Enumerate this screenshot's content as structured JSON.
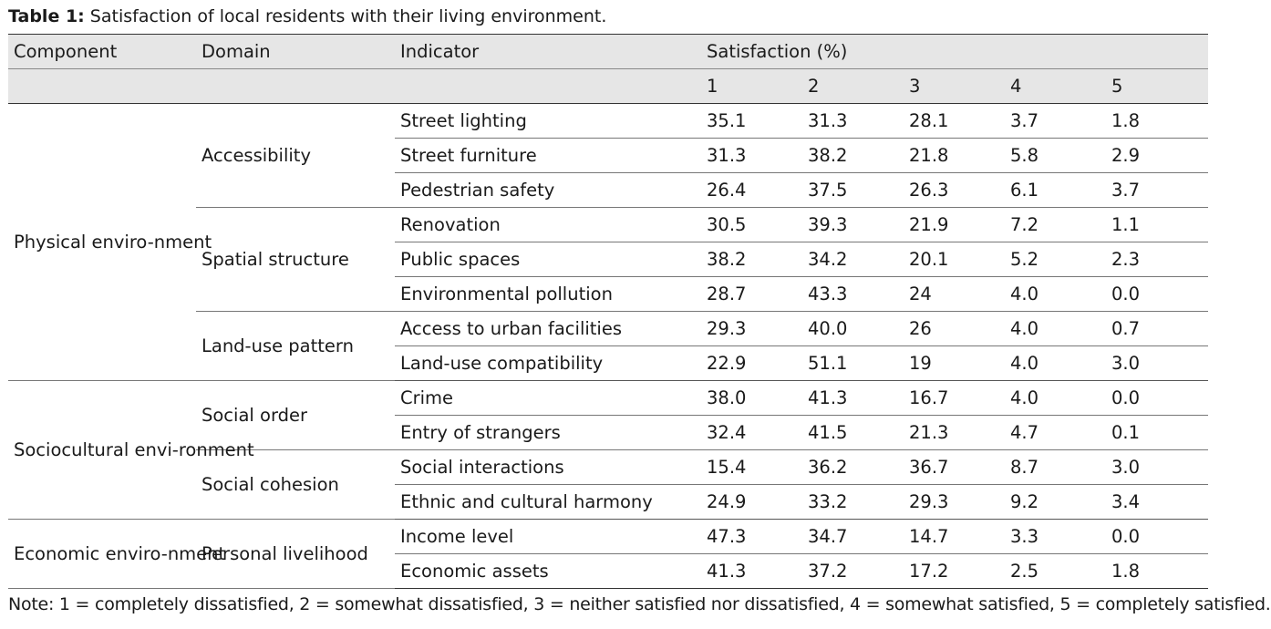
{
  "caption": {
    "label": "Table 1:",
    "text": " Satisfaction of local residents with their living environment."
  },
  "headers": {
    "component": "Component",
    "domain": "Domain",
    "indicator": "Indicator",
    "satisfaction": "Satisfaction (%)",
    "levels": [
      "1",
      "2",
      "3",
      "4",
      "5"
    ]
  },
  "rows": [
    {
      "component": "Physical enviro-nment",
      "domain": "Accessibility",
      "indicator": "Street lighting",
      "values": [
        "35.1",
        "31.3",
        "28.1",
        "3.7",
        "1.8"
      ]
    },
    {
      "component": "Physical enviro-nment",
      "domain": "Accessibility",
      "indicator": "Street furniture",
      "values": [
        "31.3",
        "38.2",
        "21.8",
        "5.8",
        "2.9"
      ]
    },
    {
      "component": "Physical enviro-nment",
      "domain": "Accessibility",
      "indicator": "Pedestrian safety",
      "values": [
        "26.4",
        "37.5",
        "26.3",
        "6.1",
        "3.7"
      ]
    },
    {
      "component": "Physical enviro-nment",
      "domain": "Spatial structure",
      "indicator": "Renovation",
      "values": [
        "30.5",
        "39.3",
        "21.9",
        "7.2",
        "1.1"
      ]
    },
    {
      "component": "Physical enviro-nment",
      "domain": "Spatial structure",
      "indicator": "Public spaces",
      "values": [
        "38.2",
        "34.2",
        "20.1",
        "5.2",
        "2.3"
      ]
    },
    {
      "component": "Physical enviro-nment",
      "domain": "Spatial structure",
      "indicator": "Environmental pollution",
      "values": [
        "28.7",
        "43.3",
        "24",
        "4.0",
        "0.0"
      ]
    },
    {
      "component": "Physical enviro-nment",
      "domain": "Land-use pattern",
      "indicator": "Access to urban facilities",
      "values": [
        "29.3",
        "40.0",
        "26",
        "4.0",
        "0.7"
      ]
    },
    {
      "component": "Physical enviro-nment",
      "domain": "Land-use pattern",
      "indicator": "Land-use compatibility",
      "values": [
        "22.9",
        "51.1",
        "19",
        "4.0",
        "3.0"
      ]
    },
    {
      "component": "Sociocultural envi-ronment",
      "domain": "Social order",
      "indicator": "Crime",
      "values": [
        "38.0",
        "41.3",
        "16.7",
        "4.0",
        "0.0"
      ]
    },
    {
      "component": "Sociocultural envi-ronment",
      "domain": "Social order",
      "indicator": "Entry of strangers",
      "values": [
        "32.4",
        "41.5",
        "21.3",
        "4.7",
        "0.1"
      ]
    },
    {
      "component": "Sociocultural envi-ronment",
      "domain": "Social cohesion",
      "indicator": "Social interactions",
      "values": [
        "15.4",
        "36.2",
        "36.7",
        "8.7",
        "3.0"
      ]
    },
    {
      "component": "Sociocultural envi-ronment",
      "domain": "Social cohesion",
      "indicator": "Ethnic and cultural harmony",
      "values": [
        "24.9",
        "33.2",
        "29.3",
        "9.2",
        "3.4"
      ]
    },
    {
      "component": "Economic enviro-nment",
      "domain": "Personal livelihood",
      "indicator": "Income level",
      "values": [
        "47.3",
        "34.7",
        "14.7",
        "3.3",
        "0.0"
      ]
    },
    {
      "component": "Economic enviro-nment",
      "domain": "Personal livelihood",
      "indicator": "Economic assets",
      "values": [
        "41.3",
        "37.2",
        "17.2",
        "2.5",
        "1.8"
      ]
    }
  ],
  "note": "Note: 1 = completely dissatisfied, 2 = somewhat dissatisfied, 3 = neither satisfied nor dissatisfied, 4 = somewhat satisfied, 5 = completely satisfied."
}
